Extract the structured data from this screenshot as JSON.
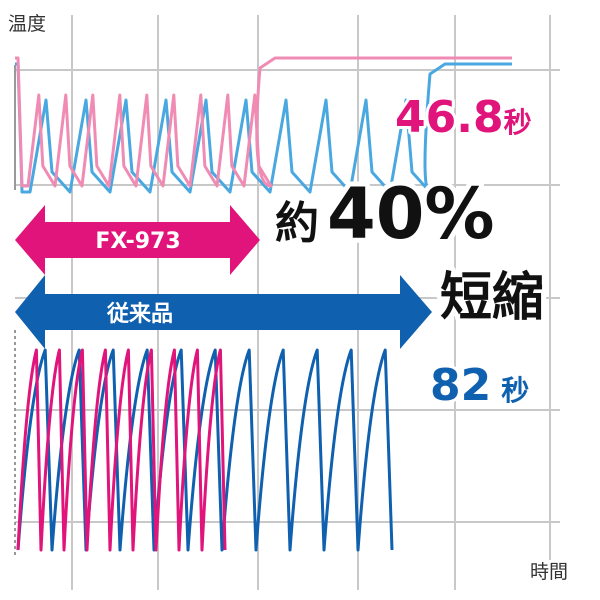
{
  "axis": {
    "y_label": "温度",
    "x_label": "時間"
  },
  "arrows": {
    "new": "FX-973",
    "old": "従来品"
  },
  "labels": {
    "new_time_value": "46.8",
    "new_time_unit": "秒",
    "old_time_value": "82",
    "old_time_unit": "秒",
    "reduction_prefix": "約",
    "reduction": "40%",
    "reduction_suffix": "短縮"
  }
}
